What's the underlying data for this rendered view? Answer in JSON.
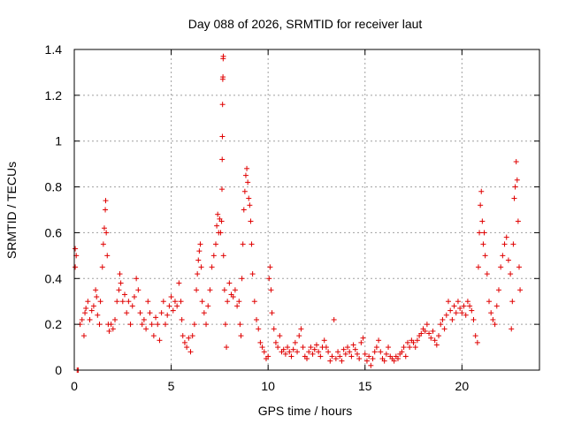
{
  "chart_data": {
    "type": "scatter",
    "title": "Day 088 of 2026, SRMTID for receiver laut",
    "xlabel": "GPS time / hours",
    "ylabel": "SRMTID / TECUs",
    "xlim": [
      0,
      24
    ],
    "ylim": [
      0,
      1.4
    ],
    "xticks": [
      0,
      5,
      10,
      15,
      20
    ],
    "xtick_labels": [
      "0",
      "5",
      "10",
      "15",
      "20"
    ],
    "yticks": [
      0,
      0.2,
      0.4,
      0.6,
      0.8,
      1.0,
      1.2,
      1.4
    ],
    "ytick_labels": [
      "0",
      "0.2",
      "0.4",
      "0.6",
      "0.8",
      "1",
      "1.2",
      "1.4"
    ],
    "grid": true,
    "marker": "+",
    "marker_color": "#e00000",
    "series": [
      {
        "name": "SRMTID",
        "points": [
          [
            0.05,
            0.53
          ],
          [
            0.05,
            0.45
          ],
          [
            0.1,
            0.5
          ],
          [
            0.15,
            0.0
          ],
          [
            0.2,
            0.0
          ],
          [
            0.3,
            0.2
          ],
          [
            0.4,
            0.22
          ],
          [
            0.5,
            0.15
          ],
          [
            0.55,
            0.25
          ],
          [
            0.6,
            0.27
          ],
          [
            0.7,
            0.3
          ],
          [
            0.8,
            0.22
          ],
          [
            0.9,
            0.26
          ],
          [
            1.0,
            0.28
          ],
          [
            1.1,
            0.35
          ],
          [
            1.15,
            0.32
          ],
          [
            1.2,
            0.24
          ],
          [
            1.3,
            0.2
          ],
          [
            1.35,
            0.3
          ],
          [
            1.45,
            0.45
          ],
          [
            1.5,
            0.55
          ],
          [
            1.55,
            0.62
          ],
          [
            1.6,
            0.7
          ],
          [
            1.62,
            0.74
          ],
          [
            1.65,
            0.6
          ],
          [
            1.7,
            0.5
          ],
          [
            1.75,
            0.2
          ],
          [
            1.8,
            0.17
          ],
          [
            1.9,
            0.2
          ],
          [
            2.0,
            0.18
          ],
          [
            2.1,
            0.22
          ],
          [
            2.2,
            0.3
          ],
          [
            2.3,
            0.35
          ],
          [
            2.35,
            0.42
          ],
          [
            2.4,
            0.38
          ],
          [
            2.5,
            0.3
          ],
          [
            2.6,
            0.33
          ],
          [
            2.7,
            0.25
          ],
          [
            2.8,
            0.3
          ],
          [
            2.9,
            0.2
          ],
          [
            3.0,
            0.28
          ],
          [
            3.1,
            0.32
          ],
          [
            3.2,
            0.4
          ],
          [
            3.3,
            0.35
          ],
          [
            3.4,
            0.25
          ],
          [
            3.5,
            0.2
          ],
          [
            3.6,
            0.22
          ],
          [
            3.7,
            0.18
          ],
          [
            3.8,
            0.3
          ],
          [
            3.9,
            0.25
          ],
          [
            4.0,
            0.2
          ],
          [
            4.1,
            0.15
          ],
          [
            4.2,
            0.23
          ],
          [
            4.3,
            0.2
          ],
          [
            4.4,
            0.13
          ],
          [
            4.5,
            0.25
          ],
          [
            4.6,
            0.3
          ],
          [
            4.7,
            0.2
          ],
          [
            4.8,
            0.24
          ],
          [
            4.9,
            0.28
          ],
          [
            5.0,
            0.32
          ],
          [
            5.1,
            0.26
          ],
          [
            5.2,
            0.3
          ],
          [
            5.3,
            0.28
          ],
          [
            5.4,
            0.38
          ],
          [
            5.5,
            0.3
          ],
          [
            5.55,
            0.22
          ],
          [
            5.6,
            0.15
          ],
          [
            5.7,
            0.12
          ],
          [
            5.8,
            0.1
          ],
          [
            5.9,
            0.14
          ],
          [
            6.0,
            0.08
          ],
          [
            6.1,
            0.15
          ],
          [
            6.2,
            0.2
          ],
          [
            6.3,
            0.35
          ],
          [
            6.35,
            0.42
          ],
          [
            6.4,
            0.48
          ],
          [
            6.45,
            0.52
          ],
          [
            6.5,
            0.55
          ],
          [
            6.55,
            0.45
          ],
          [
            6.6,
            0.3
          ],
          [
            6.7,
            0.25
          ],
          [
            6.8,
            0.2
          ],
          [
            6.9,
            0.28
          ],
          [
            7.0,
            0.35
          ],
          [
            7.1,
            0.45
          ],
          [
            7.2,
            0.5
          ],
          [
            7.3,
            0.55
          ],
          [
            7.35,
            0.63
          ],
          [
            7.4,
            0.68
          ],
          [
            7.45,
            0.6
          ],
          [
            7.5,
            0.66
          ],
          [
            7.55,
            0.6
          ],
          [
            7.6,
            0.65
          ],
          [
            7.62,
            0.79
          ],
          [
            7.63,
            0.92
          ],
          [
            7.64,
            1.02
          ],
          [
            7.65,
            1.16
          ],
          [
            7.66,
            1.27
          ],
          [
            7.67,
            1.28
          ],
          [
            7.68,
            1.36
          ],
          [
            7.69,
            1.37
          ],
          [
            7.7,
            0.5
          ],
          [
            7.75,
            0.35
          ],
          [
            7.8,
            0.2
          ],
          [
            7.85,
            0.1
          ],
          [
            7.9,
            0.3
          ],
          [
            8.0,
            0.38
          ],
          [
            8.1,
            0.33
          ],
          [
            8.2,
            0.32
          ],
          [
            8.3,
            0.35
          ],
          [
            8.4,
            0.28
          ],
          [
            8.5,
            0.3
          ],
          [
            8.55,
            0.2
          ],
          [
            8.6,
            0.15
          ],
          [
            8.65,
            0.4
          ],
          [
            8.7,
            0.55
          ],
          [
            8.75,
            0.7
          ],
          [
            8.8,
            0.78
          ],
          [
            8.85,
            0.85
          ],
          [
            8.9,
            0.88
          ],
          [
            8.95,
            0.82
          ],
          [
            9.0,
            0.75
          ],
          [
            9.05,
            0.72
          ],
          [
            9.1,
            0.65
          ],
          [
            9.15,
            0.55
          ],
          [
            9.2,
            0.42
          ],
          [
            9.3,
            0.3
          ],
          [
            9.4,
            0.22
          ],
          [
            9.5,
            0.18
          ],
          [
            9.6,
            0.12
          ],
          [
            9.7,
            0.1
          ],
          [
            9.8,
            0.08
          ],
          [
            9.9,
            0.05
          ],
          [
            10.0,
            0.06
          ],
          [
            10.05,
            0.4
          ],
          [
            10.1,
            0.45
          ],
          [
            10.15,
            0.35
          ],
          [
            10.2,
            0.25
          ],
          [
            10.3,
            0.18
          ],
          [
            10.4,
            0.12
          ],
          [
            10.5,
            0.1
          ],
          [
            10.6,
            0.15
          ],
          [
            10.7,
            0.08
          ],
          [
            10.8,
            0.09
          ],
          [
            10.9,
            0.07
          ],
          [
            11.0,
            0.1
          ],
          [
            11.1,
            0.08
          ],
          [
            11.2,
            0.06
          ],
          [
            11.3,
            0.09
          ],
          [
            11.4,
            0.12
          ],
          [
            11.5,
            0.08
          ],
          [
            11.6,
            0.15
          ],
          [
            11.7,
            0.18
          ],
          [
            11.8,
            0.1
          ],
          [
            11.9,
            0.06
          ],
          [
            12.0,
            0.05
          ],
          [
            12.1,
            0.08
          ],
          [
            12.2,
            0.1
          ],
          [
            12.3,
            0.07
          ],
          [
            12.4,
            0.09
          ],
          [
            12.5,
            0.11
          ],
          [
            12.6,
            0.08
          ],
          [
            12.7,
            0.06
          ],
          [
            12.8,
            0.1
          ],
          [
            12.9,
            0.13
          ],
          [
            13.0,
            0.1
          ],
          [
            13.1,
            0.08
          ],
          [
            13.2,
            0.04
          ],
          [
            13.3,
            0.06
          ],
          [
            13.4,
            0.22
          ],
          [
            13.5,
            0.05
          ],
          [
            13.6,
            0.08
          ],
          [
            13.7,
            0.06
          ],
          [
            13.8,
            0.04
          ],
          [
            13.9,
            0.09
          ],
          [
            14.0,
            0.07
          ],
          [
            14.1,
            0.1
          ],
          [
            14.2,
            0.08
          ],
          [
            14.3,
            0.06
          ],
          [
            14.4,
            0.11
          ],
          [
            14.5,
            0.09
          ],
          [
            14.6,
            0.07
          ],
          [
            14.7,
            0.05
          ],
          [
            14.8,
            0.12
          ],
          [
            14.9,
            0.14
          ],
          [
            15.0,
            0.07
          ],
          [
            15.1,
            0.04
          ],
          [
            15.2,
            0.06
          ],
          [
            15.3,
            0.02
          ],
          [
            15.4,
            0.05
          ],
          [
            15.5,
            0.08
          ],
          [
            15.6,
            0.1
          ],
          [
            15.7,
            0.13
          ],
          [
            15.8,
            0.08
          ],
          [
            15.9,
            0.05
          ],
          [
            16.0,
            0.04
          ],
          [
            16.1,
            0.07
          ],
          [
            16.2,
            0.1
          ],
          [
            16.3,
            0.06
          ],
          [
            16.4,
            0.05
          ],
          [
            16.5,
            0.04
          ],
          [
            16.6,
            0.06
          ],
          [
            16.7,
            0.05
          ],
          [
            16.8,
            0.07
          ],
          [
            16.9,
            0.08
          ],
          [
            17.0,
            0.1
          ],
          [
            17.1,
            0.06
          ],
          [
            17.2,
            0.12
          ],
          [
            17.3,
            0.1
          ],
          [
            17.4,
            0.13
          ],
          [
            17.5,
            0.12
          ],
          [
            17.6,
            0.1
          ],
          [
            17.7,
            0.13
          ],
          [
            17.8,
            0.15
          ],
          [
            17.9,
            0.16
          ],
          [
            18.0,
            0.18
          ],
          [
            18.1,
            0.17
          ],
          [
            18.2,
            0.2
          ],
          [
            18.3,
            0.16
          ],
          [
            18.4,
            0.14
          ],
          [
            18.5,
            0.17
          ],
          [
            18.6,
            0.13
          ],
          [
            18.7,
            0.11
          ],
          [
            18.8,
            0.15
          ],
          [
            18.9,
            0.2
          ],
          [
            19.0,
            0.22
          ],
          [
            19.1,
            0.18
          ],
          [
            19.2,
            0.24
          ],
          [
            19.3,
            0.3
          ],
          [
            19.4,
            0.26
          ],
          [
            19.5,
            0.22
          ],
          [
            19.6,
            0.28
          ],
          [
            19.7,
            0.25
          ],
          [
            19.8,
            0.3
          ],
          [
            19.9,
            0.27
          ],
          [
            20.0,
            0.25
          ],
          [
            20.1,
            0.28
          ],
          [
            20.2,
            0.24
          ],
          [
            20.3,
            0.3
          ],
          [
            20.4,
            0.28
          ],
          [
            20.5,
            0.26
          ],
          [
            20.6,
            0.22
          ],
          [
            20.7,
            0.15
          ],
          [
            20.8,
            0.12
          ],
          [
            20.85,
            0.45
          ],
          [
            20.9,
            0.6
          ],
          [
            20.95,
            0.72
          ],
          [
            21.0,
            0.78
          ],
          [
            21.05,
            0.65
          ],
          [
            21.1,
            0.55
          ],
          [
            21.15,
            0.6
          ],
          [
            21.2,
            0.5
          ],
          [
            21.3,
            0.42
          ],
          [
            21.4,
            0.3
          ],
          [
            21.5,
            0.25
          ],
          [
            21.6,
            0.22
          ],
          [
            21.7,
            0.2
          ],
          [
            21.8,
            0.28
          ],
          [
            21.9,
            0.35
          ],
          [
            22.0,
            0.45
          ],
          [
            22.1,
            0.5
          ],
          [
            22.2,
            0.55
          ],
          [
            22.3,
            0.58
          ],
          [
            22.4,
            0.48
          ],
          [
            22.5,
            0.42
          ],
          [
            22.55,
            0.18
          ],
          [
            22.6,
            0.3
          ],
          [
            22.65,
            0.55
          ],
          [
            22.7,
            0.75
          ],
          [
            22.75,
            0.8
          ],
          [
            22.8,
            0.91
          ],
          [
            22.85,
            0.83
          ],
          [
            22.9,
            0.65
          ],
          [
            22.95,
            0.45
          ],
          [
            23.0,
            0.35
          ]
        ]
      }
    ]
  }
}
